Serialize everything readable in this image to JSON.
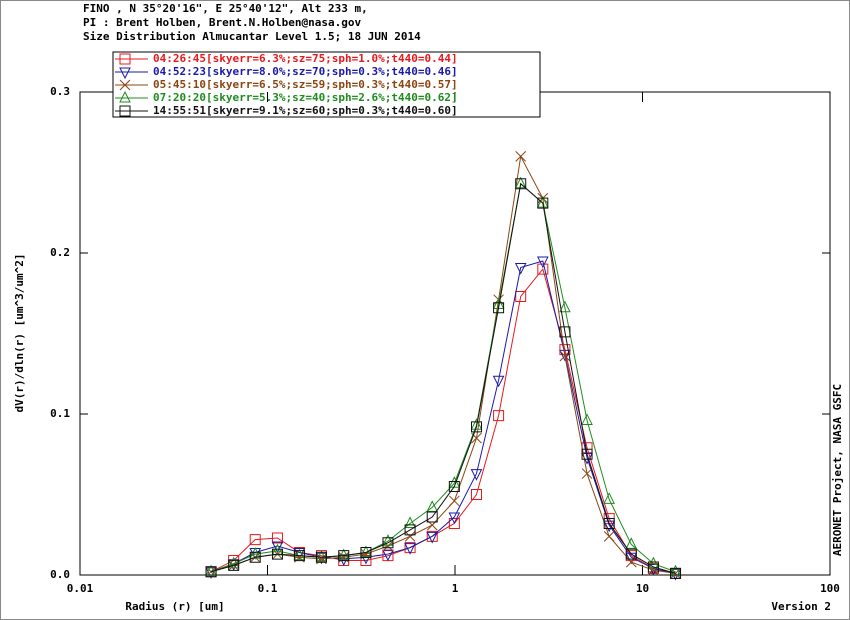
{
  "chart_data": {
    "type": "line",
    "header": [
      "FINO , N 35°20'16\", E 25°40'12\", Alt 233 m,",
      "PI : Brent Holben, Brent.N.Holben@nasa.gov",
      "Size Distribution Almucantar Level 1.5; 18 JUN 2014"
    ],
    "x_label": "Radius (r) [um]",
    "y_label": "dV(r)/dln(r) [um^3/um^2]",
    "side_note": "AERONET Project, NASA GSFC",
    "version": "Version 2",
    "log_x": true,
    "xlim": [
      0.01,
      100
    ],
    "ylim": [
      0,
      0.3
    ],
    "xticks": [
      0.01,
      0.1,
      1,
      10,
      100
    ],
    "yticks": [
      {
        "value": 0,
        "label": "0.0"
      },
      0.1,
      0.2,
      0.3
    ],
    "x": [
      0.05,
      0.066,
      0.086,
      0.113,
      0.148,
      0.194,
      0.255,
      0.335,
      0.439,
      0.576,
      0.756,
      0.992,
      1.302,
      1.708,
      2.241,
      2.94,
      3.857,
      5.061,
      6.641,
      8.713,
      11.432,
      15.0
    ],
    "series": [
      {
        "name": "04:26:45[skyerr=6.3%;sz=75;sph=1.0%;t440=0.44]",
        "color": "#e8191c",
        "marker": "square",
        "values": [
          0.002,
          0.009,
          0.022,
          0.023,
          0.014,
          0.012,
          0.009,
          0.009,
          0.012,
          0.017,
          0.024,
          0.032,
          0.05,
          0.099,
          0.173,
          0.19,
          0.14,
          0.079,
          0.035,
          0.012,
          0.004,
          0.001
        ]
      },
      {
        "name": "04:52:23[skyerr=8.0%;sz=70;sph=0.3%;t440=0.46]",
        "color": "#1a1aa8",
        "marker": "triangle-down",
        "values": [
          0.002,
          0.007,
          0.014,
          0.018,
          0.014,
          0.011,
          0.01,
          0.011,
          0.013,
          0.017,
          0.024,
          0.036,
          0.063,
          0.121,
          0.191,
          0.195,
          0.137,
          0.073,
          0.031,
          0.011,
          0.004,
          0.001
        ]
      },
      {
        "name": "05:45:10[skyerr=6.5%;sz=59;sph=0.3%;t440=0.57]",
        "color": "#8b4513",
        "marker": "x",
        "values": [
          0.002,
          0.006,
          0.011,
          0.013,
          0.011,
          0.01,
          0.011,
          0.013,
          0.018,
          0.024,
          0.031,
          0.046,
          0.085,
          0.171,
          0.26,
          0.234,
          0.136,
          0.063,
          0.024,
          0.008,
          0.003,
          0.001
        ]
      },
      {
        "name": "07:20:20[skyerr=5.3%;sz=40;sph=2.6%;t440=0.62]",
        "color": "#1e8c1e",
        "marker": "triangle",
        "values": [
          0.002,
          0.007,
          0.013,
          0.015,
          0.012,
          0.011,
          0.012,
          0.014,
          0.021,
          0.032,
          0.042,
          0.057,
          0.093,
          0.168,
          0.243,
          0.231,
          0.166,
          0.096,
          0.047,
          0.019,
          0.007,
          0.002
        ]
      },
      {
        "name": "14:55:51[skyerr=9.1%;sz=60;sph=0.3%;t440=0.60]",
        "color": "#111111",
        "marker": "square",
        "values": [
          0.002,
          0.006,
          0.011,
          0.013,
          0.012,
          0.011,
          0.012,
          0.014,
          0.02,
          0.028,
          0.036,
          0.055,
          0.092,
          0.166,
          0.243,
          0.231,
          0.151,
          0.075,
          0.032,
          0.013,
          0.005,
          0.001
        ]
      }
    ]
  }
}
